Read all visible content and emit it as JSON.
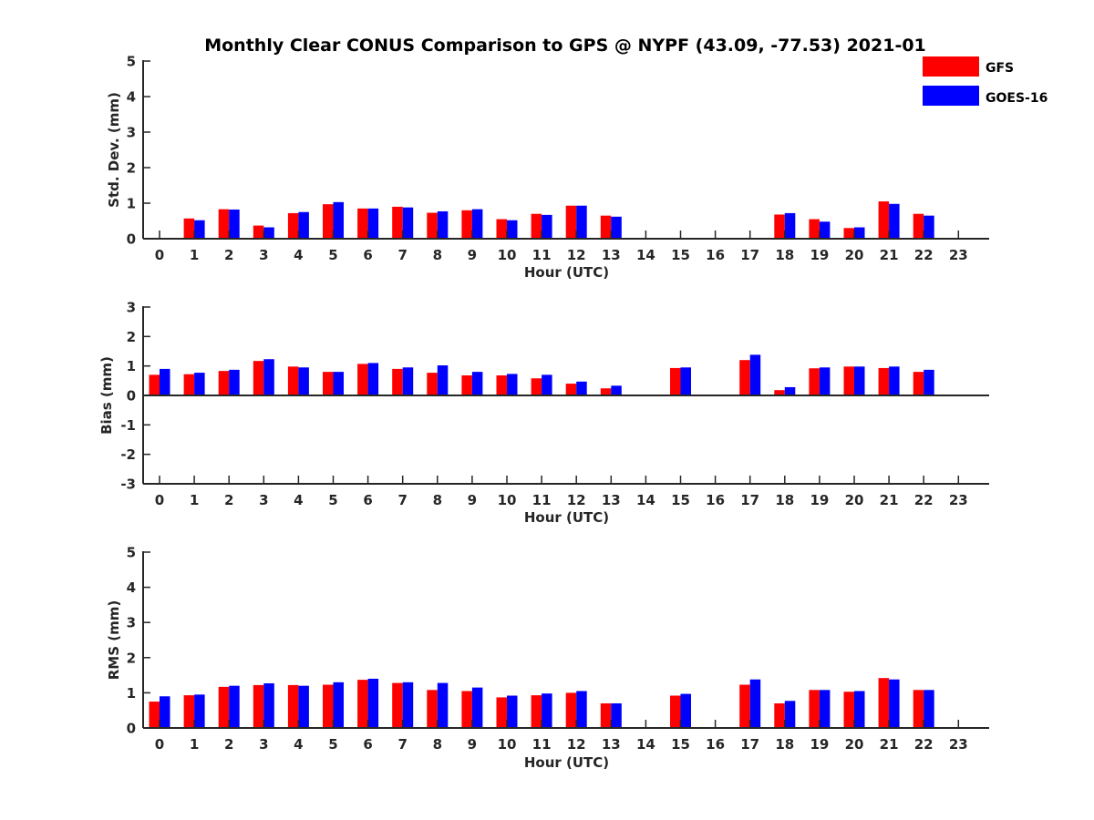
{
  "chart_data": {
    "title": "Monthly Clear CONUS Comparison to GPS @ NYPF (43.09, -77.53) 2021-01",
    "legend": {
      "placement": "top-right",
      "entries": [
        {
          "name": "GFS",
          "color": "#ff0000"
        },
        {
          "name": "GOES-16",
          "color": "#0000ff"
        }
      ]
    },
    "charts": [
      {
        "type": "bar",
        "xlabel": "Hour (UTC)",
        "ylabel": "Std. Dev. (mm)",
        "ylim": [
          0,
          5
        ],
        "yticks": [
          0,
          1,
          2,
          3,
          4,
          5
        ],
        "ytick_labels": [
          "0",
          "1",
          "2",
          "3",
          "4",
          "5"
        ],
        "categories": [
          "0",
          "1",
          "2",
          "3",
          "4",
          "5",
          "6",
          "7",
          "8",
          "9",
          "10",
          "11",
          "12",
          "13",
          "14",
          "15",
          "16",
          "17",
          "18",
          "19",
          "20",
          "21",
          "22",
          "23"
        ],
        "series": [
          {
            "name": "GFS",
            "color": "#ff0000",
            "values": [
              null,
              0.57,
              0.83,
              0.37,
              0.72,
              0.97,
              0.85,
              0.9,
              0.73,
              0.8,
              0.55,
              0.7,
              0.93,
              0.65,
              null,
              null,
              null,
              null,
              0.68,
              0.55,
              0.3,
              1.05,
              0.7,
              null
            ]
          },
          {
            "name": "GOES-16",
            "color": "#0000ff",
            "values": [
              null,
              0.52,
              0.82,
              0.32,
              0.75,
              1.03,
              0.85,
              0.88,
              0.77,
              0.83,
              0.52,
              0.67,
              0.93,
              0.62,
              null,
              null,
              null,
              null,
              0.72,
              0.48,
              0.32,
              0.98,
              0.65,
              null
            ]
          }
        ]
      },
      {
        "type": "bar",
        "xlabel": "Hour (UTC)",
        "ylabel": "Bias (mm)",
        "ylim": [
          -3,
          3
        ],
        "yticks": [
          -3,
          -2,
          -1,
          0,
          1,
          2,
          3
        ],
        "ytick_labels": [
          "-3",
          "-2",
          "-1",
          "0",
          "1",
          "2",
          "3"
        ],
        "categories": [
          "0",
          "1",
          "2",
          "3",
          "4",
          "5",
          "6",
          "7",
          "8",
          "9",
          "10",
          "11",
          "12",
          "13",
          "14",
          "15",
          "16",
          "17",
          "18",
          "19",
          "20",
          "21",
          "22",
          "23"
        ],
        "series": [
          {
            "name": "GFS",
            "color": "#ff0000",
            "values": [
              0.7,
              0.72,
              0.83,
              1.17,
              0.98,
              0.8,
              1.07,
              0.9,
              0.77,
              0.68,
              0.68,
              0.58,
              0.4,
              0.24,
              null,
              0.93,
              null,
              1.2,
              0.18,
              0.92,
              0.98,
              0.93,
              0.8,
              null
            ]
          },
          {
            "name": "GOES-16",
            "color": "#0000ff",
            "values": [
              0.9,
              0.77,
              0.87,
              1.23,
              0.95,
              0.8,
              1.1,
              0.95,
              1.02,
              0.8,
              0.73,
              0.7,
              0.47,
              0.33,
              null,
              0.95,
              null,
              1.38,
              0.28,
              0.95,
              0.98,
              0.98,
              0.87,
              null
            ]
          }
        ]
      },
      {
        "type": "bar",
        "xlabel": "Hour (UTC)",
        "ylabel": "RMS (mm)",
        "ylim": [
          0,
          5
        ],
        "yticks": [
          0,
          1,
          2,
          3,
          4,
          5
        ],
        "ytick_labels": [
          "0",
          "1",
          "2",
          "3",
          "4",
          "5"
        ],
        "categories": [
          "0",
          "1",
          "2",
          "3",
          "4",
          "5",
          "6",
          "7",
          "8",
          "9",
          "10",
          "11",
          "12",
          "13",
          "14",
          "15",
          "16",
          "17",
          "18",
          "19",
          "20",
          "21",
          "22",
          "23"
        ],
        "series": [
          {
            "name": "GFS",
            "color": "#ff0000",
            "values": [
              0.75,
              0.93,
              1.17,
              1.22,
              1.22,
              1.23,
              1.37,
              1.28,
              1.08,
              1.05,
              0.87,
              0.93,
              1.0,
              0.7,
              null,
              0.92,
              null,
              1.23,
              0.7,
              1.08,
              1.03,
              1.42,
              1.08,
              null
            ]
          },
          {
            "name": "GOES-16",
            "color": "#0000ff",
            "values": [
              0.9,
              0.95,
              1.2,
              1.27,
              1.2,
              1.3,
              1.4,
              1.3,
              1.28,
              1.15,
              0.92,
              0.98,
              1.05,
              0.7,
              null,
              0.97,
              null,
              1.38,
              0.77,
              1.08,
              1.05,
              1.38,
              1.08,
              null
            ]
          }
        ]
      }
    ]
  }
}
